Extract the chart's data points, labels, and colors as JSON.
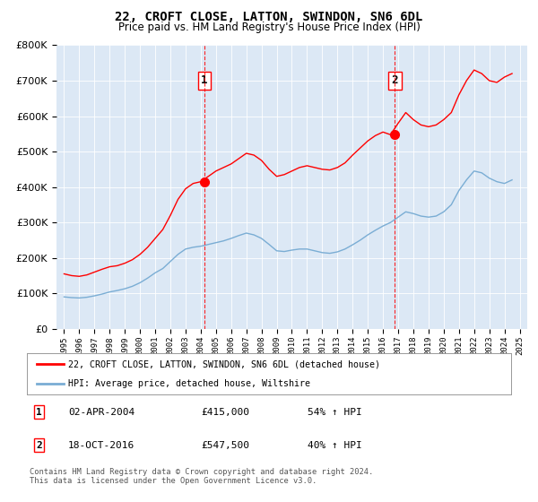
{
  "title": "22, CROFT CLOSE, LATTON, SWINDON, SN6 6DL",
  "subtitle": "Price paid vs. HM Land Registry's House Price Index (HPI)",
  "bg_color": "#dce8f5",
  "red_line_label": "22, CROFT CLOSE, LATTON, SWINDON, SN6 6DL (detached house)",
  "blue_line_label": "HPI: Average price, detached house, Wiltshire",
  "transaction1_date": "02-APR-2004",
  "transaction1_price": 415000,
  "transaction1_pct": "54% ↑ HPI",
  "transaction2_date": "18-OCT-2016",
  "transaction2_price": 547500,
  "transaction2_pct": "40% ↑ HPI",
  "footer": "Contains HM Land Registry data © Crown copyright and database right 2024.\nThis data is licensed under the Open Government Licence v3.0.",
  "ylim_min": 0,
  "ylim_max": 800000,
  "red_x": [
    1995.0,
    1995.5,
    1996.0,
    1996.5,
    1997.0,
    1997.5,
    1998.0,
    1998.5,
    1999.0,
    1999.5,
    2000.0,
    2000.5,
    2001.0,
    2001.5,
    2002.0,
    2002.5,
    2003.0,
    2003.5,
    2004.0,
    2004.5,
    2005.0,
    2005.5,
    2006.0,
    2006.5,
    2007.0,
    2007.5,
    2008.0,
    2008.5,
    2009.0,
    2009.5,
    2010.0,
    2010.5,
    2011.0,
    2011.5,
    2012.0,
    2012.5,
    2013.0,
    2013.5,
    2014.0,
    2014.5,
    2015.0,
    2015.5,
    2016.0,
    2016.5,
    2017.0,
    2017.5,
    2018.0,
    2018.5,
    2019.0,
    2019.5,
    2020.0,
    2020.5,
    2021.0,
    2021.5,
    2022.0,
    2022.5,
    2023.0,
    2023.5,
    2024.0,
    2024.5
  ],
  "red_y": [
    155000,
    150000,
    148000,
    152000,
    160000,
    168000,
    175000,
    178000,
    185000,
    195000,
    210000,
    230000,
    255000,
    280000,
    320000,
    365000,
    395000,
    410000,
    415000,
    430000,
    445000,
    455000,
    465000,
    480000,
    495000,
    490000,
    475000,
    450000,
    430000,
    435000,
    445000,
    455000,
    460000,
    455000,
    450000,
    448000,
    455000,
    468000,
    490000,
    510000,
    530000,
    545000,
    555000,
    547500,
    580000,
    610000,
    590000,
    575000,
    570000,
    575000,
    590000,
    610000,
    660000,
    700000,
    730000,
    720000,
    700000,
    695000,
    710000,
    720000
  ],
  "blue_x": [
    1995.0,
    1995.5,
    1996.0,
    1996.5,
    1997.0,
    1997.5,
    1998.0,
    1998.5,
    1999.0,
    1999.5,
    2000.0,
    2000.5,
    2001.0,
    2001.5,
    2002.0,
    2002.5,
    2003.0,
    2003.5,
    2004.0,
    2004.5,
    2005.0,
    2005.5,
    2006.0,
    2006.5,
    2007.0,
    2007.5,
    2008.0,
    2008.5,
    2009.0,
    2009.5,
    2010.0,
    2010.5,
    2011.0,
    2011.5,
    2012.0,
    2012.5,
    2013.0,
    2013.5,
    2014.0,
    2014.5,
    2015.0,
    2015.5,
    2016.0,
    2016.5,
    2017.0,
    2017.5,
    2018.0,
    2018.5,
    2019.0,
    2019.5,
    2020.0,
    2020.5,
    2021.0,
    2021.5,
    2022.0,
    2022.5,
    2023.0,
    2023.5,
    2024.0,
    2024.5
  ],
  "blue_y": [
    90000,
    88000,
    87000,
    89000,
    93000,
    98000,
    104000,
    108000,
    113000,
    120000,
    130000,
    143000,
    158000,
    170000,
    190000,
    210000,
    225000,
    230000,
    233000,
    238000,
    243000,
    248000,
    255000,
    263000,
    270000,
    265000,
    255000,
    238000,
    220000,
    218000,
    222000,
    225000,
    225000,
    220000,
    215000,
    213000,
    217000,
    225000,
    237000,
    250000,
    265000,
    278000,
    290000,
    300000,
    315000,
    330000,
    325000,
    318000,
    315000,
    318000,
    330000,
    350000,
    390000,
    420000,
    445000,
    440000,
    425000,
    415000,
    410000,
    420000
  ],
  "xticks": [
    1995,
    1996,
    1997,
    1998,
    1999,
    2000,
    2001,
    2002,
    2003,
    2004,
    2005,
    2006,
    2007,
    2008,
    2009,
    2010,
    2011,
    2012,
    2013,
    2014,
    2015,
    2016,
    2017,
    2018,
    2019,
    2020,
    2021,
    2022,
    2023,
    2024,
    2025
  ],
  "vline1_x": 2004.25,
  "vline2_x": 2016.79,
  "marker1_x": 2004.25,
  "marker1_y": 415000,
  "marker2_x": 2016.79,
  "marker2_y": 547500
}
